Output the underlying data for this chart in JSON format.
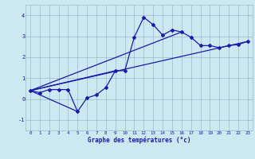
{
  "title": "",
  "xlabel": "Graphe des températures (°c)",
  "ylabel": "",
  "xlim": [
    -0.5,
    23.5
  ],
  "ylim": [
    -1.5,
    4.5
  ],
  "yticks": [
    -1,
    0,
    1,
    2,
    3,
    4
  ],
  "xticks": [
    0,
    1,
    2,
    3,
    4,
    5,
    6,
    7,
    8,
    9,
    10,
    11,
    12,
    13,
    14,
    15,
    16,
    17,
    18,
    19,
    20,
    21,
    22,
    23
  ],
  "background_color": "#cce8f0",
  "line_color": "#1a1aaa",
  "grid_color": "#99bbcc",
  "curve_x": [
    0,
    1,
    2,
    3,
    4,
    5,
    6,
    7,
    8,
    9,
    10,
    11,
    12,
    13,
    14,
    15,
    16,
    17,
    18,
    19,
    20,
    21,
    22,
    23
  ],
  "curve_y": [
    0.4,
    0.3,
    0.45,
    0.45,
    0.45,
    -0.6,
    0.05,
    0.2,
    0.55,
    1.35,
    1.35,
    2.95,
    3.9,
    3.55,
    3.05,
    3.3,
    3.2,
    2.95,
    2.55,
    2.55,
    2.45,
    2.55,
    2.6,
    2.75
  ],
  "line1_x": [
    0,
    23
  ],
  "line1_y": [
    0.4,
    2.75
  ],
  "line2_x": [
    0,
    16
  ],
  "line2_y": [
    0.4,
    3.2
  ],
  "line3_x": [
    0,
    9
  ],
  "line3_y": [
    0.4,
    1.35
  ],
  "line4_x": [
    0,
    5
  ],
  "line4_y": [
    0.4,
    -0.6
  ]
}
